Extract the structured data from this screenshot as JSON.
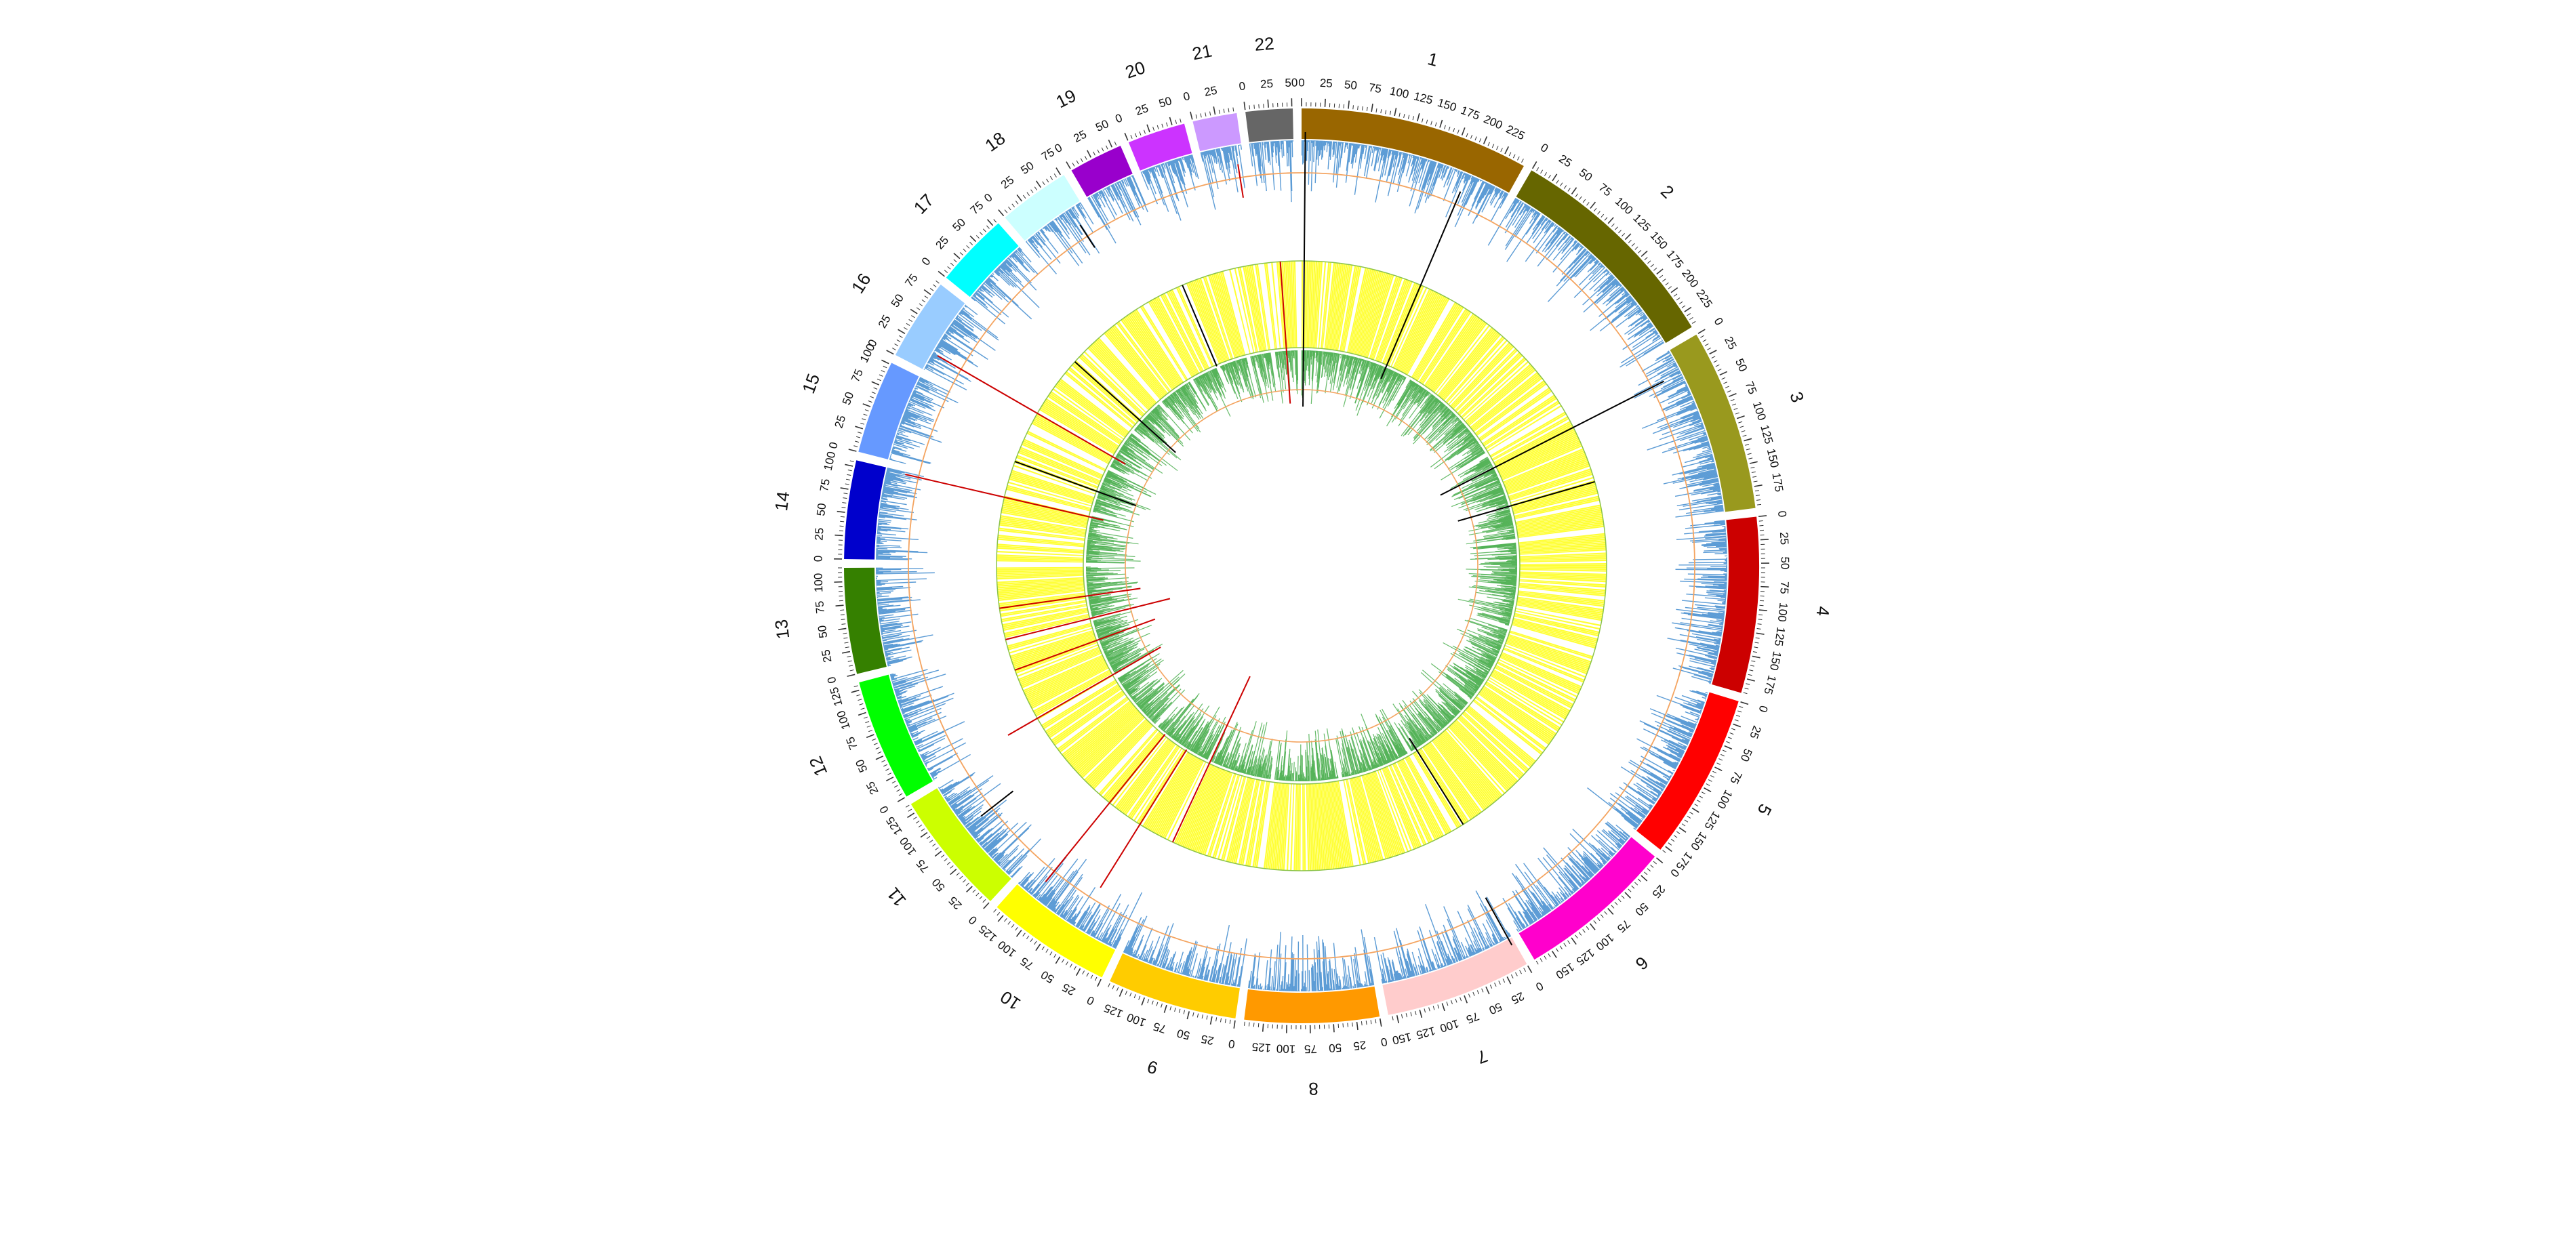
{
  "chromosomes": [
    {
      "name": "1",
      "length": 249,
      "color": "#996600",
      "ticks": [
        "0",
        "25",
        "50",
        "75",
        "100",
        "125",
        "150",
        "175",
        "200",
        "225"
      ]
    },
    {
      "name": "2",
      "length": 243,
      "color": "#666600",
      "ticks": [
        "0",
        "25",
        "50",
        "75",
        "100",
        "125",
        "150",
        "175",
        "200",
        "225"
      ]
    },
    {
      "name": "3",
      "length": 198,
      "color": "#99991E",
      "ticks": [
        "0",
        "25",
        "50",
        "75",
        "100",
        "125",
        "150",
        "175"
      ]
    },
    {
      "name": "4",
      "length": 191,
      "color": "#CC0000",
      "ticks": [
        "0",
        "25",
        "50",
        "75",
        "100",
        "125",
        "150",
        "175"
      ]
    },
    {
      "name": "5",
      "length": 181,
      "color": "#FF0000",
      "ticks": [
        "0",
        "25",
        "50",
        "75",
        "100",
        "125",
        "150",
        "175"
      ]
    },
    {
      "name": "6",
      "length": 171,
      "color": "#FF00CC",
      "ticks": [
        "0",
        "25",
        "50",
        "75",
        "100",
        "125",
        "150"
      ]
    },
    {
      "name": "7",
      "length": 159,
      "color": "#FFCCCC",
      "ticks": [
        "0",
        "25",
        "50",
        "75",
        "100",
        "125",
        "150"
      ]
    },
    {
      "name": "8",
      "length": 146,
      "color": "#FF9900",
      "ticks": [
        "0",
        "25",
        "50",
        "75",
        "100",
        "125"
      ]
    },
    {
      "name": "9",
      "length": 141,
      "color": "#FFCC00",
      "ticks": [
        "0",
        "25",
        "50",
        "75",
        "100",
        "125"
      ]
    },
    {
      "name": "10",
      "length": 136,
      "color": "#FFFF00",
      "ticks": [
        "0",
        "25",
        "50",
        "75",
        "100",
        "125"
      ]
    },
    {
      "name": "11",
      "length": 135,
      "color": "#CCFF00",
      "ticks": [
        "0",
        "25",
        "50",
        "75",
        "100",
        "125"
      ]
    },
    {
      "name": "12",
      "length": 133,
      "color": "#00FF00",
      "ticks": [
        "0",
        "25",
        "50",
        "75",
        "100",
        "125"
      ]
    },
    {
      "name": "13",
      "length": 115,
      "color": "#358000",
      "ticks": [
        "0",
        "25",
        "50",
        "75",
        "100"
      ]
    },
    {
      "name": "14",
      "length": 107,
      "color": "#0000CC",
      "ticks": [
        "0",
        "25",
        "50",
        "75",
        "100"
      ]
    },
    {
      "name": "15",
      "length": 102,
      "color": "#6699FF",
      "ticks": [
        "0",
        "25",
        "50",
        "75",
        "100"
      ]
    },
    {
      "name": "16",
      "length": 90,
      "color": "#99CCFF",
      "ticks": [
        "0",
        "25",
        "50",
        "75"
      ]
    },
    {
      "name": "17",
      "length": 81,
      "color": "#00FFFF",
      "ticks": [
        "0",
        "25",
        "50",
        "75"
      ]
    },
    {
      "name": "18",
      "length": 78,
      "color": "#CCFFFF",
      "ticks": [
        "0",
        "25",
        "50",
        "75"
      ]
    },
    {
      "name": "19",
      "length": 59,
      "color": "#9900CC",
      "ticks": [
        "0",
        "25",
        "50"
      ]
    },
    {
      "name": "20",
      "length": 63,
      "color": "#CC33FF",
      "ticks": [
        "0",
        "25",
        "50"
      ]
    },
    {
      "name": "21",
      "length": 48,
      "color": "#CC99FF",
      "ticks": [
        "0",
        "25"
      ]
    },
    {
      "name": "22",
      "length": 51,
      "color": "#666666",
      "ticks": [
        "0",
        "25",
        "50"
      ]
    }
  ],
  "tracks": {
    "outer_histogram_color": "#5B9BD5",
    "outer_threshold_line_color": "#F4A460",
    "heatmap_color": "#FFFF33",
    "heatmap_border_color": "#8BC34A",
    "inner_histogram_color": "#4CAF50",
    "inner_threshold_line_color": "#F4A460",
    "highlight_dark": "#000000",
    "highlight_red": "#CC0000"
  }
}
